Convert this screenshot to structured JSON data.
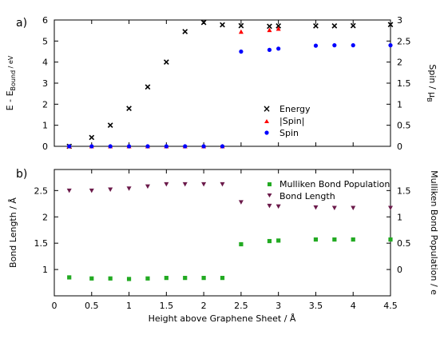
{
  "chart_data": [
    {
      "type": "scatter",
      "panel_label": "a)",
      "xlim": [
        0,
        4.5
      ],
      "ylim": [
        0,
        6
      ],
      "y2lim": [
        0,
        3
      ],
      "y_ticks": [
        "0",
        "1",
        "2",
        "3",
        "4",
        "5",
        "6"
      ],
      "y2_ticks": [
        "0",
        "0.5",
        "1",
        "1.5",
        "2",
        "2.5",
        "3"
      ],
      "ylabel_main": "E - E",
      "ylabel_sub": "Bound",
      "ylabel_unit": " / eV",
      "y2label_main": "Spin / μ",
      "y2label_sub": "B",
      "legend_position": "center-right",
      "series": [
        {
          "name": "Energy",
          "axis": "left",
          "marker": "x",
          "color": "#000000",
          "x": [
            0.2,
            0.5,
            0.75,
            1.0,
            1.25,
            1.5,
            1.75,
            2.0,
            2.25,
            2.5,
            2.88,
            3.0,
            3.5,
            3.75,
            4.0,
            4.5
          ],
          "y": [
            0.0,
            0.42,
            1.0,
            1.8,
            2.82,
            4.0,
            5.45,
            5.88,
            5.77,
            5.73,
            5.7,
            5.72,
            5.72,
            5.72,
            5.73,
            5.78
          ]
        },
        {
          "name": "|Spin|",
          "axis": "right",
          "marker": "triangle-up",
          "color": "#ff0000",
          "x": [
            0.2,
            0.5,
            0.75,
            1.0,
            1.25,
            1.5,
            1.75,
            2.0,
            2.25,
            2.5,
            2.88,
            3.0
          ],
          "y": [
            0,
            0,
            0,
            0,
            0,
            0,
            0,
            0,
            0,
            2.72,
            2.76,
            2.79
          ]
        },
        {
          "name": "Spin",
          "axis": "right",
          "marker": "circle",
          "color": "#0000ff",
          "x": [
            0.2,
            0.5,
            0.75,
            1.0,
            1.25,
            1.5,
            1.75,
            2.0,
            2.25,
            2.5,
            2.88,
            3.0,
            3.5,
            3.75,
            4.0,
            4.5
          ],
          "y": [
            0,
            0,
            0,
            0,
            0,
            0,
            0,
            0,
            0,
            2.25,
            2.29,
            2.32,
            2.39,
            2.4,
            2.4,
            2.4
          ]
        }
      ]
    },
    {
      "type": "scatter",
      "panel_label": "b)",
      "xlim": [
        0,
        4.5
      ],
      "ylim": [
        0.5,
        2.9
      ],
      "y2lim": [
        -0.5,
        1.9
      ],
      "x_ticks": [
        "0",
        "0.5",
        "1",
        "1.5",
        "2",
        "2.5",
        "3",
        "3.5",
        "4",
        "4.5"
      ],
      "y_ticks": [
        "1",
        "1.5",
        "2",
        "2.5"
      ],
      "y2_ticks": [
        "0",
        "0.5",
        "1",
        "1.5"
      ],
      "xlabel": "Height above Graphene Sheet / Å",
      "ylabel": "Bond Length / Å",
      "y2label": "Mulliken Bond Population / e",
      "legend_position": "top-right",
      "series": [
        {
          "name": "Mulliken Bond Population",
          "axis": "right",
          "marker": "square",
          "color": "#22aa22",
          "x": [
            0.2,
            0.5,
            0.75,
            1.0,
            1.25,
            1.5,
            1.75,
            2.0,
            2.25,
            2.5,
            2.88,
            3.0,
            3.5,
            3.75,
            4.0,
            4.5
          ],
          "y": [
            -0.15,
            -0.17,
            -0.17,
            -0.18,
            -0.17,
            -0.16,
            -0.16,
            -0.16,
            -0.16,
            0.48,
            0.54,
            0.55,
            0.57,
            0.57,
            0.57,
            0.57
          ]
        },
        {
          "name": "Bond Length",
          "axis": "left",
          "marker": "triangle-down",
          "color": "#6b1a4a",
          "x": [
            0.2,
            0.5,
            0.75,
            1.0,
            1.25,
            1.5,
            1.75,
            2.0,
            2.25,
            2.5,
            2.88,
            3.0,
            3.5,
            3.75,
            4.0,
            4.5
          ],
          "y": [
            2.5,
            2.5,
            2.52,
            2.54,
            2.58,
            2.62,
            2.62,
            2.62,
            2.62,
            2.28,
            2.21,
            2.2,
            2.18,
            2.17,
            2.17,
            2.17
          ]
        }
      ]
    }
  ]
}
